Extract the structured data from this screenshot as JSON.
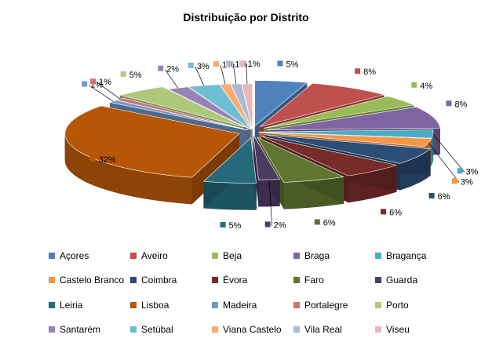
{
  "chart_data": {
    "type": "pie",
    "title": "Distribuição por Distrito",
    "legend_position": "bottom",
    "slices": [
      {
        "name": "Açores",
        "value": 5,
        "label": "5%",
        "color": "#4F81BD"
      },
      {
        "name": "Aveiro",
        "value": 8,
        "label": "8%",
        "color": "#C0504D"
      },
      {
        "name": "Beja",
        "value": 4,
        "label": "4%",
        "color": "#9BBB59"
      },
      {
        "name": "Braga",
        "value": 8,
        "label": "8%",
        "color": "#8064A2"
      },
      {
        "name": "Bragança",
        "value": 3,
        "label": "3%",
        "color": "#4BACC6"
      },
      {
        "name": "Castelo Branco",
        "value": 3,
        "label": "3%",
        "color": "#F79646"
      },
      {
        "name": "Coimbra",
        "value": 6,
        "label": "6%",
        "color": "#2C4D75"
      },
      {
        "name": "Évora",
        "value": 6,
        "label": "6%",
        "color": "#772C2A"
      },
      {
        "name": "Faro",
        "value": 6,
        "label": "6%",
        "color": "#5F7530"
      },
      {
        "name": "Guarda",
        "value": 2,
        "label": "2%",
        "color": "#4D3B62"
      },
      {
        "name": "Leiria",
        "value": 5,
        "label": "5%",
        "color": "#276A7C"
      },
      {
        "name": "Lisboa",
        "value": 32,
        "label": "32%",
        "color": "#B65708"
      },
      {
        "name": "Madeira",
        "value": 1,
        "label": "1%",
        "color": "#729ACA"
      },
      {
        "name": "Portalegre",
        "value": 1,
        "label": "1%",
        "color": "#CD7371"
      },
      {
        "name": "Porto",
        "value": 5,
        "label": "5%",
        "color": "#AFC97A"
      },
      {
        "name": "Santarém",
        "value": 2,
        "label": "2%",
        "color": "#9983B5"
      },
      {
        "name": "Setúbal",
        "value": 3,
        "label": "3%",
        "color": "#6FBDD1"
      },
      {
        "name": "Viana Castelo",
        "value": 1,
        "label": "1%",
        "color": "#F9AB6B"
      },
      {
        "name": "Vila Real",
        "value": 1,
        "label": "1%",
        "color": "#AAB9D7"
      },
      {
        "name": "Viseu",
        "value": 1,
        "label": "1%",
        "color": "#E6B9B8"
      }
    ]
  }
}
